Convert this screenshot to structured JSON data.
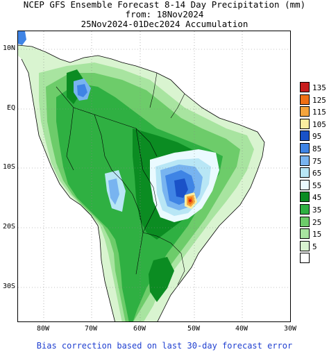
{
  "title": {
    "line1": "NCEP GFS Ensemble Forecast 8-14 Day Precipitation (mm)",
    "line2": "from: 18Nov2024",
    "line3": "25Nov2024-01Dec2024 Accumulation"
  },
  "axes": {
    "lat_labels": [
      "10N",
      "EQ",
      "10S",
      "20S",
      "30S"
    ],
    "lon_labels": [
      "80W",
      "70W",
      "60W",
      "50W",
      "40W",
      "30W"
    ]
  },
  "legend": {
    "items": [
      {
        "label": "135",
        "color": "#c81e1e"
      },
      {
        "label": "125",
        "color": "#f07014"
      },
      {
        "label": "115",
        "color": "#f5a53c"
      },
      {
        "label": "105",
        "color": "#fbeea0"
      },
      {
        "label": "95",
        "color": "#1a52c8"
      },
      {
        "label": "85",
        "color": "#3f84e5"
      },
      {
        "label": "75",
        "color": "#78b4f0"
      },
      {
        "label": "65",
        "color": "#b8e6f5"
      },
      {
        "label": "55",
        "color": "#eafaff"
      },
      {
        "label": "45",
        "color": "#0b8c22"
      },
      {
        "label": "35",
        "color": "#2fb042"
      },
      {
        "label": "25",
        "color": "#6dcc6a"
      },
      {
        "label": "15",
        "color": "#a8e4a0"
      },
      {
        "label": "5",
        "color": "#d9f4d0"
      },
      {
        "label": "",
        "color": "#ffffff"
      }
    ]
  },
  "footer": "Bias correction based on last 30-day forecast error"
}
